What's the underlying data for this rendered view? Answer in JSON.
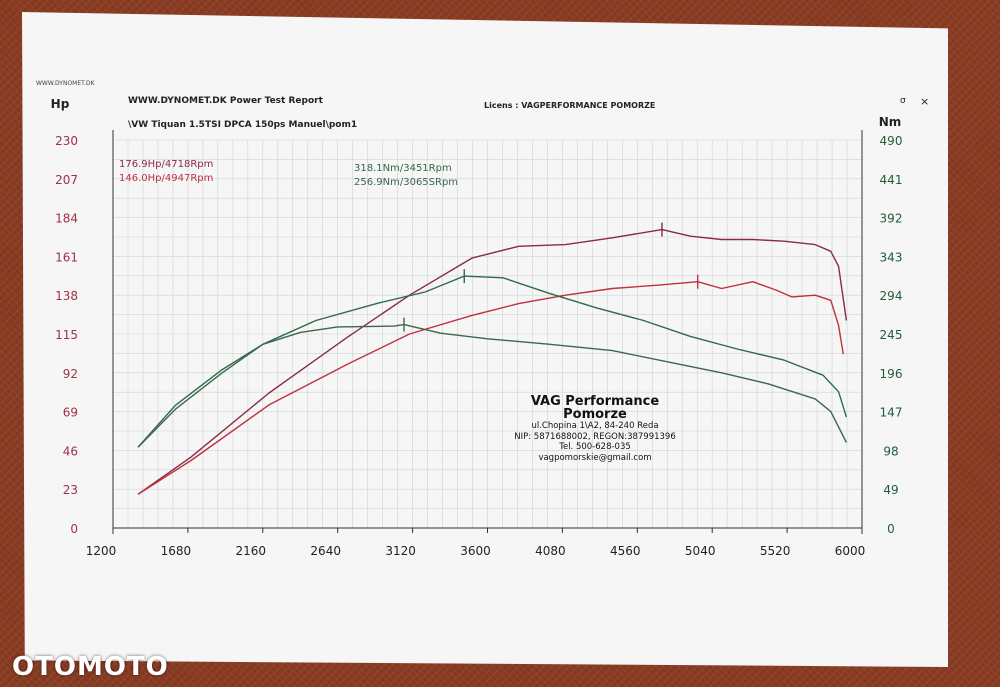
{
  "header": {
    "site": "WWW.DYNOMET.DK",
    "site_title": "WWW.DYNOMET.DK  Power Test Report",
    "license": "Licens :  VAGPERFORMANCE POMORZE",
    "file": "\\VW Tiquan 1.5TSI DPCA 150ps Manuel\\pom1",
    "window_controls": [
      "σ",
      "×"
    ]
  },
  "stamp": {
    "name": "VAG Performance",
    "name2": "Pomorze",
    "address": "ul.Chopina 1\\A2, 84-240 Reda",
    "ids": "NIP: 5871688002, REGON:387991396",
    "tel": "Tel. 500-628-035",
    "email": "vagpomorskie@gmail.com"
  },
  "watermark": "OTOMOTO",
  "chart_data": {
    "type": "line",
    "xlim": [
      1200,
      6000
    ],
    "x_ticks": [
      1200,
      1680,
      2160,
      2640,
      3120,
      3600,
      4080,
      4560,
      5040,
      5520,
      6000
    ],
    "left_axis": {
      "label": "Hp",
      "ylim": [
        0,
        230
      ],
      "ticks": [
        0,
        23,
        46,
        69,
        92,
        115,
        138,
        161,
        184,
        207,
        230
      ],
      "color": "#a0304a"
    },
    "right_axis": {
      "label": "Nm",
      "ylim": [
        0,
        490
      ],
      "ticks": [
        0,
        49,
        98,
        147,
        196,
        245,
        294,
        343,
        392,
        441,
        490
      ],
      "color": "#1f5c3a"
    },
    "grid": true,
    "peak_labels": {
      "hp": [
        "176.9Hp/4718Rpm",
        "146.0Hp/4947Rpm"
      ],
      "nm": [
        "318.1Nm/3451Rpm",
        "256.9Nm/3065SRpm"
      ]
    },
    "series": [
      {
        "axis": "left",
        "color": "#8b2a48",
        "peak_x": 4718,
        "x": [
          1360,
          1700,
          2200,
          2700,
          3100,
          3500,
          3800,
          4100,
          4400,
          4718,
          4900,
          5100,
          5300,
          5500,
          5700,
          5800,
          5850,
          5900
        ],
        "y": [
          20,
          42,
          80,
          113,
          138,
          160,
          167,
          168,
          172,
          176.9,
          173,
          171,
          171,
          170,
          168,
          164,
          155,
          123
        ]
      },
      {
        "axis": "left",
        "color": "#c0303e",
        "peak_x": 4947,
        "x": [
          1360,
          1700,
          2200,
          2700,
          3100,
          3500,
          3800,
          4100,
          4400,
          4700,
          4947,
          5100,
          5300,
          5450,
          5550,
          5700,
          5800,
          5850,
          5880
        ],
        "y": [
          20,
          40,
          73,
          97,
          115,
          126,
          133,
          138,
          142,
          144,
          146,
          142,
          146,
          141,
          137,
          138,
          135,
          120,
          103
        ]
      },
      {
        "axis": "right",
        "color": "#2e6b46",
        "peak_x": 3451,
        "x": [
          1360,
          1600,
          1900,
          2160,
          2500,
          2900,
          3200,
          3451,
          3700,
          4000,
          4300,
          4600,
          4900,
          5200,
          5500,
          5750,
          5850,
          5900
        ],
        "y": [
          102,
          155,
          200,
          232,
          262,
          284,
          298,
          318.1,
          316,
          296,
          278,
          262,
          242,
          226,
          212,
          193,
          172,
          140
        ]
      },
      {
        "axis": "right",
        "color": "#3d6650",
        "peak_x": 3065,
        "x": [
          1360,
          1600,
          1900,
          2160,
          2400,
          2640,
          3000,
          3065,
          3300,
          3600,
          4000,
          4400,
          4800,
          5100,
          5400,
          5700,
          5800,
          5900
        ],
        "y": [
          102,
          150,
          196,
          232,
          247,
          254,
          255,
          256.9,
          246,
          239,
          232,
          224,
          208,
          196,
          182,
          163,
          147,
          108
        ]
      }
    ]
  }
}
